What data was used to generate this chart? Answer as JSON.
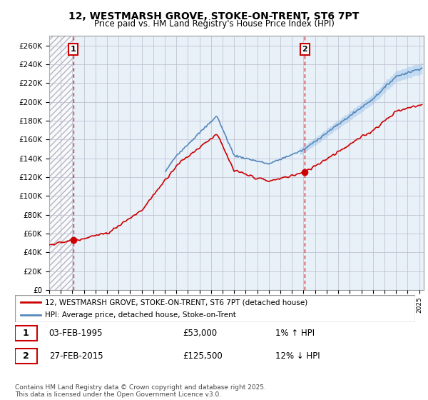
{
  "title1": "12, WESTMARSH GROVE, STOKE-ON-TRENT, ST6 7PT",
  "title2": "Price paid vs. HM Land Registry's House Price Index (HPI)",
  "ylim": [
    0,
    270000
  ],
  "yticks": [
    0,
    20000,
    40000,
    60000,
    80000,
    100000,
    120000,
    140000,
    160000,
    180000,
    200000,
    220000,
    240000,
    260000
  ],
  "ytick_labels": [
    "£0",
    "£20K",
    "£40K",
    "£60K",
    "£80K",
    "£100K",
    "£120K",
    "£140K",
    "£160K",
    "£180K",
    "£200K",
    "£220K",
    "£240K",
    "£260K"
  ],
  "sale1_date": 1995.08,
  "sale1_price": 53000,
  "sale2_date": 2015.12,
  "sale2_price": 125500,
  "legend_line1": "12, WESTMARSH GROVE, STOKE-ON-TRENT, ST6 7PT (detached house)",
  "legend_line2": "HPI: Average price, detached house, Stoke-on-Trent",
  "table_row1_date": "03-FEB-1995",
  "table_row1_price": "£53,000",
  "table_row1_hpi": "1% ↑ HPI",
  "table_row2_date": "27-FEB-2015",
  "table_row2_price": "£125,500",
  "table_row2_hpi": "12% ↓ HPI",
  "footnote": "Contains HM Land Registry data © Crown copyright and database right 2025.\nThis data is licensed under the Open Government Licence v3.0.",
  "property_color": "#cc0000",
  "hpi_color": "#5588bb",
  "hpi_band_color": "#aaccee",
  "vline_color": "#cc0000",
  "background_color": "#e8f0f8",
  "hatch_bg_color": "#dde4ee",
  "grid_color": "#bbbbcc"
}
